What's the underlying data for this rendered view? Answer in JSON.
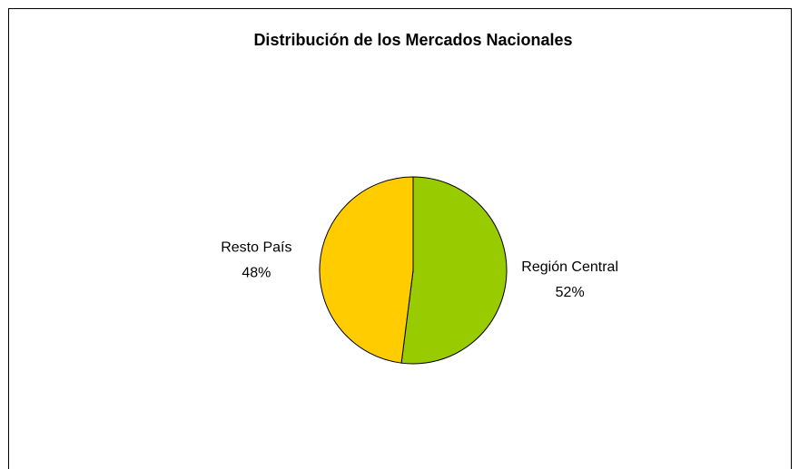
{
  "chart_data": {
    "type": "pie",
    "title": "Distribución de los Mercados Nacionales",
    "categories": [
      "Región Central",
      "Resto País"
    ],
    "values": [
      52,
      48
    ],
    "value_labels": [
      "52%",
      "48%"
    ],
    "colors": [
      "#99cc00",
      "#ffcc00"
    ]
  }
}
